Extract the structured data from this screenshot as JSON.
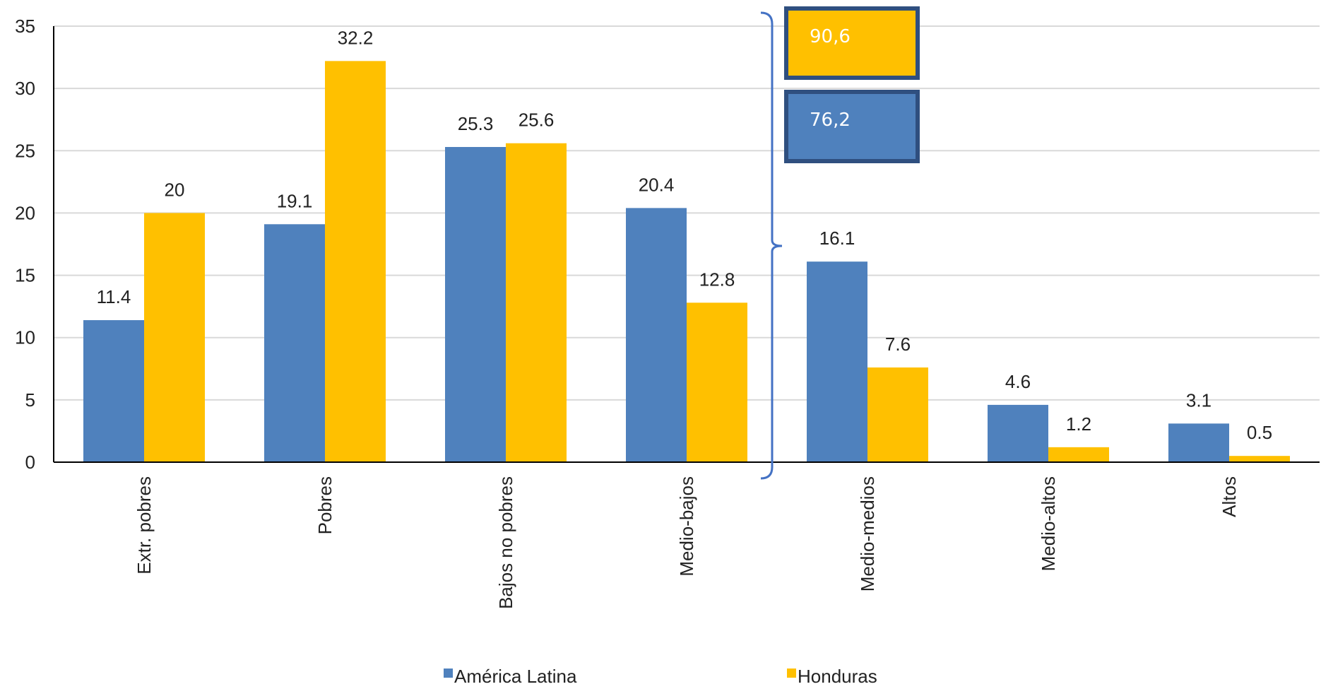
{
  "chart_data": {
    "type": "bar",
    "categories": [
      "Extr. pobres",
      "Pobres",
      "Bajos no pobres",
      "Medio-bajos",
      "Medio-medios",
      "Medio-altos",
      "Altos"
    ],
    "series": [
      {
        "name": "América Latina",
        "values": [
          11.4,
          19.1,
          25.3,
          20.4,
          16.1,
          4.6,
          3.1
        ],
        "labels": [
          "11.4",
          "19.1",
          "25.3",
          "20.4",
          "16.1",
          "4.6",
          "3.1"
        ],
        "color": "#4F81BD"
      },
      {
        "name": "Honduras",
        "values": [
          20,
          32.2,
          25.6,
          12.8,
          7.6,
          1.2,
          0.5
        ],
        "labels": [
          "20",
          "32.2",
          "25.6",
          "12.8",
          "7.6",
          "1.2",
          "0.5"
        ],
        "color": "#FFC000"
      }
    ],
    "ylim": [
      0,
      35
    ],
    "yticks": [
      "0",
      "5",
      "10",
      "15",
      "20",
      "25",
      "30",
      "35"
    ],
    "grid": true,
    "legend_position": "bottom",
    "annotations": {
      "bracket_categories": [
        "Extr. pobres",
        "Pobres",
        "Bajos no pobres",
        "Medio-bajos"
      ],
      "boxes": [
        {
          "series": "Honduras",
          "text": "90,6",
          "color": "#FFC000"
        },
        {
          "series": "América Latina",
          "text": "76,2",
          "color": "#4F81BD"
        }
      ],
      "box_border_color": "#2F4F7F"
    }
  }
}
